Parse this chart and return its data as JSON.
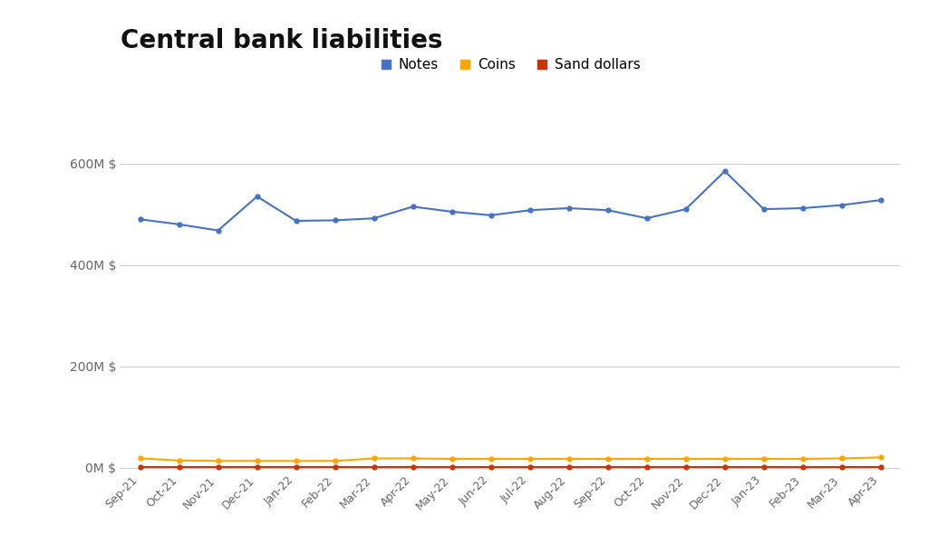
{
  "title": "Central bank liabilities",
  "x_labels": [
    "Sep-21",
    "Oct-21",
    "Nov-21",
    "Dec-21",
    "Jan-22",
    "Feb-22",
    "Mar-22",
    "Apr-22",
    "May-22",
    "Jun-22",
    "Jul-22",
    "Aug-22",
    "Sep-22",
    "Oct-22",
    "Nov-22",
    "Dec-22",
    "Jan-23",
    "Feb-23",
    "Mar-23",
    "Apr-23"
  ],
  "notes": [
    490,
    480,
    468,
    535,
    487,
    488,
    492,
    515,
    505,
    498,
    508,
    512,
    508,
    492,
    510,
    585,
    510,
    512,
    518,
    528
  ],
  "coins": [
    18,
    14,
    13,
    13,
    13,
    13,
    18,
    18,
    17,
    17,
    17,
    17,
    17,
    17,
    17,
    17,
    17,
    17,
    18,
    20
  ],
  "sand_dollars": [
    1,
    1,
    1,
    1,
    1,
    1,
    1,
    1,
    1,
    1,
    1,
    1,
    1,
    1,
    1,
    1,
    1,
    1,
    1,
    1
  ],
  "notes_color": "#4472c4",
  "coins_color": "#FFA500",
  "sand_dollars_color": "#cc3300",
  "background_color": "#ffffff",
  "grid_color": "#cccccc",
  "yticks": [
    0,
    200,
    400,
    600
  ],
  "ytick_labels": [
    "0M $",
    "200M $",
    "400M $",
    "600M $"
  ],
  "ylim": [
    -5,
    650
  ],
  "legend_labels": [
    "Notes",
    "Coins",
    "Sand dollars"
  ],
  "title_fontsize": 20,
  "tick_fontsize": 10
}
